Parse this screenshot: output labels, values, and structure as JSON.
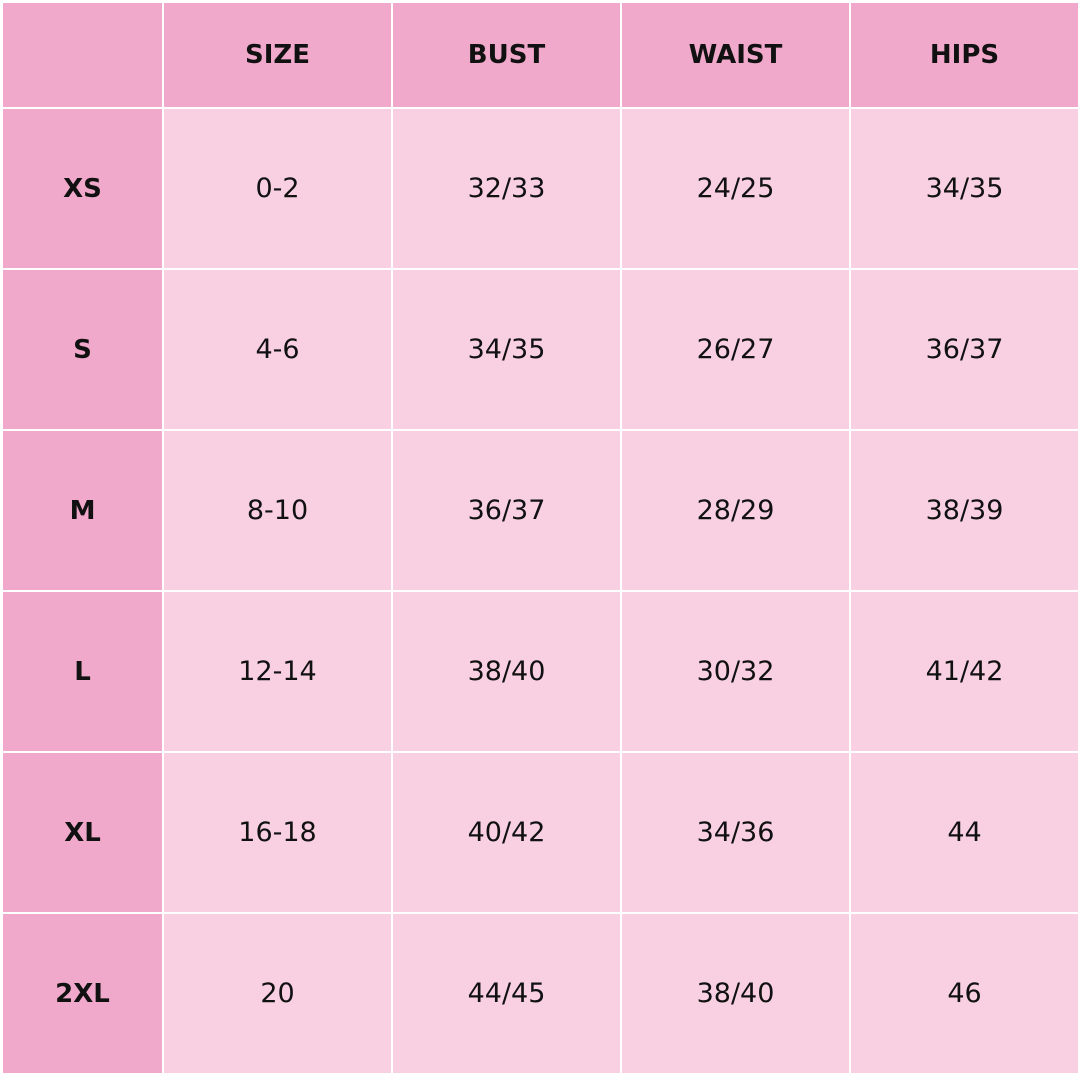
{
  "colors": {
    "header": "#f1a9cb",
    "body": "#f8d0e2",
    "grid": "#ffffff"
  },
  "columns": [
    "",
    "SIZE",
    "BUST",
    "WAIST",
    "HIPS"
  ],
  "rows": [
    {
      "label": "XS",
      "values": [
        "0-2",
        "32/33",
        "24/25",
        "34/35"
      ]
    },
    {
      "label": "S",
      "values": [
        "4-6",
        "34/35",
        "26/27",
        "36/37"
      ]
    },
    {
      "label": "M",
      "values": [
        "8-10",
        "36/37",
        "28/29",
        "38/39"
      ]
    },
    {
      "label": "L",
      "values": [
        "12-14",
        "38/40",
        "30/32",
        "41/42"
      ]
    },
    {
      "label": "XL",
      "values": [
        "16-18",
        "40/42",
        "34/36",
        "44"
      ]
    },
    {
      "label": "2XL",
      "values": [
        "20",
        "44/45",
        "38/40",
        "46"
      ]
    }
  ]
}
